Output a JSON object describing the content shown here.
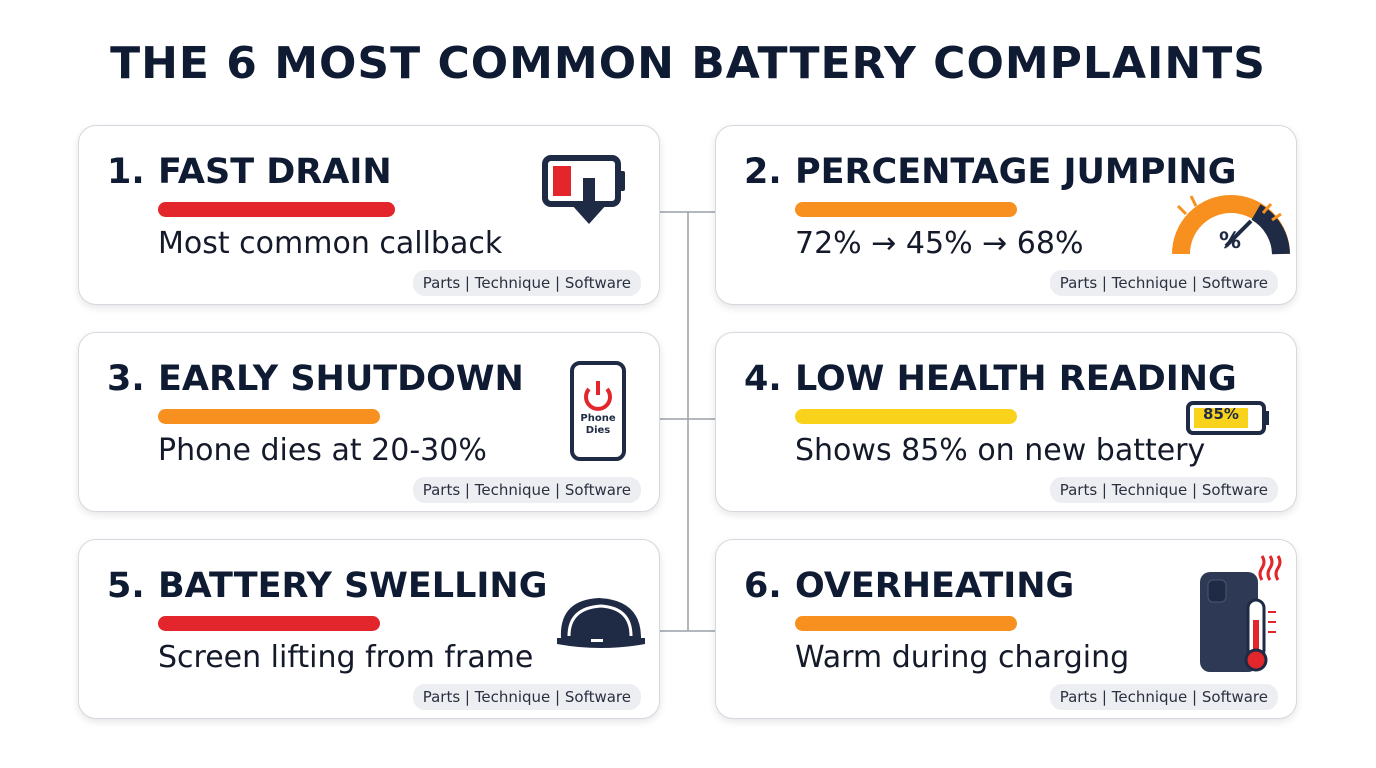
{
  "header": {
    "title": "THE 6 MOST COMMON BATTERY COMPLAINTS"
  },
  "cards": [
    {
      "number": "1.",
      "title": "FAST DRAIN",
      "subtitle": "Most common callback",
      "tags": "Parts | Technique | Software",
      "color": "#e2262b"
    },
    {
      "number": "2.",
      "title": "PERCENTAGE JUMPING",
      "subtitle": "72% → 45% → 68%",
      "tags": "Parts | Technique | Software",
      "color": "#f7901e",
      "icon_text": "%"
    },
    {
      "number": "3.",
      "title": "EARLY SHUTDOWN",
      "subtitle": "Phone dies at 20-30%",
      "tags": "Parts | Technique | Software",
      "color": "#f7901e",
      "icon_text": "Phone Dies"
    },
    {
      "number": "4.",
      "title": "LOW HEALTH READING",
      "subtitle": "Shows 85% on new battery",
      "tags": "Parts | Technique | Software",
      "color": "#f9d21c",
      "icon_text": "85%"
    },
    {
      "number": "5.",
      "title": "BATTERY SWELLING",
      "subtitle": "Screen lifting from frame",
      "tags": "Parts | Technique | Software",
      "color": "#e2262b"
    },
    {
      "number": "6.",
      "title": "OVERHEATING",
      "subtitle": "Warm during charging",
      "tags": "Parts | Technique | Software",
      "color": "#f7901e"
    }
  ]
}
